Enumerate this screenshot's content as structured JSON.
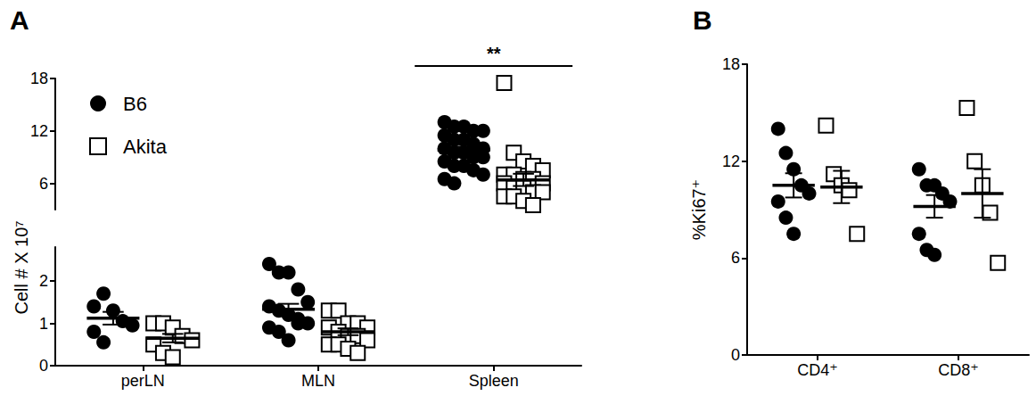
{
  "chart_data": [
    {
      "type": "scatter",
      "title": "A",
      "ylabel": "Cell # X 10⁷",
      "categories": [
        "perLN",
        "MLN",
        "Spleen"
      ],
      "ylim": [
        0,
        2.8
      ],
      "yticks": [
        0,
        1,
        2
      ],
      "ylim_upper": [
        3,
        18
      ],
      "yticks_upper": [
        6,
        12,
        18
      ],
      "legend": "upper left",
      "series": [
        {
          "name": "B6",
          "color": "#000000",
          "marker": "circle",
          "values": [
            [
              1.4,
              1.7,
              1.3,
              1.05,
              0.95,
              0.8,
              0.55
            ],
            [
              2.4,
              2.2,
              2.2,
              1.8,
              1.5,
              1.4,
              1.3,
              1.2,
              1.0,
              1.0,
              0.9,
              0.8,
              0.6,
              1.1
            ],
            [
              13,
              12.5,
              12.5,
              12,
              12,
              11.5,
              11,
              11,
              10.5,
              10,
              10,
              9.5,
              9.5,
              9,
              9,
              8.5,
              8,
              8,
              7.5,
              7,
              6.5,
              6
            ]
          ],
          "mean": [
            1.12,
            1.33,
            9.8
          ],
          "sem": [
            0.15,
            0.13,
            0.4
          ]
        },
        {
          "name": "Akita",
          "color": "#000000",
          "marker": "square_open",
          "values": [
            [
              1.0,
              1.0,
              0.9,
              0.7,
              0.6,
              0.5,
              0.3,
              0.2
            ],
            [
              1.3,
              1.3,
              1.0,
              1.0,
              0.9,
              0.9,
              0.8,
              0.7,
              0.7,
              0.6,
              0.5,
              0.5,
              0.4,
              0.3
            ],
            [
              17.5,
              9.5,
              8.5,
              8,
              7.5,
              7,
              7,
              6.5,
              6.5,
              6,
              6,
              5.5,
              5.5,
              5,
              5,
              4.5,
              4.5,
              4,
              3.5
            ]
          ],
          "mean": [
            0.65,
            0.8,
            6.4
          ],
          "sem": [
            0.1,
            0.08,
            0.7
          ]
        }
      ],
      "annotations": [
        {
          "text": "**",
          "category": "Spleen"
        }
      ]
    },
    {
      "type": "scatter",
      "title": "B",
      "ylabel": "%Ki67⁺",
      "categories": [
        "CD4⁺",
        "CD8⁺"
      ],
      "ylim": [
        0,
        18
      ],
      "yticks": [
        0,
        6,
        12,
        18
      ],
      "series": [
        {
          "name": "B6",
          "color": "#000000",
          "marker": "circle",
          "values": [
            [
              14,
              12.5,
              11.5,
              10.5,
              10,
              9.5,
              8.5,
              7.5
            ],
            [
              11.5,
              10.5,
              10.5,
              10.0,
              9.5,
              7.5,
              6.5,
              6.2
            ]
          ],
          "mean": [
            10.5,
            9.2
          ],
          "sem": [
            0.75,
            0.7
          ]
        },
        {
          "name": "Akita",
          "color": "#000000",
          "marker": "square_open",
          "values": [
            [
              14.2,
              11.2,
              10.5,
              10.2,
              7.5
            ],
            [
              15.3,
              12.0,
              10.5,
              8.8,
              5.7
            ]
          ],
          "mean": [
            10.4,
            10.0
          ],
          "sem": [
            1.0,
            1.5
          ]
        }
      ]
    }
  ]
}
